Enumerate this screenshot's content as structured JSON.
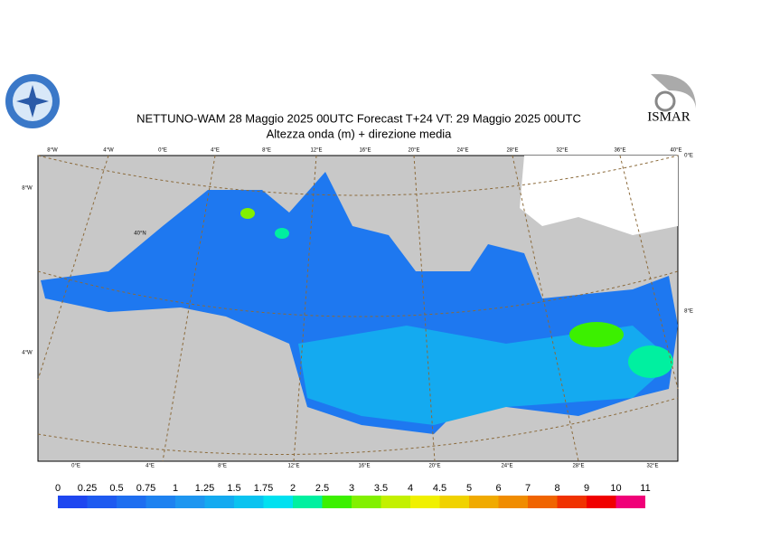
{
  "header": {
    "title": "NETTUNO-WAM  28   Maggio  2025 00UTC Forecast T+24 VT: 29   Maggio  2025 00UTC",
    "subtitle": "Altezza onda (m) + direzione media"
  },
  "logo_right": "ISMAR",
  "map": {
    "top_labels": [
      "8°W",
      "4°W",
      "0°E",
      "4°E",
      "8°E",
      "12°E",
      "16°E",
      "20°E",
      "24°E",
      "28°E",
      "32°E",
      "36°E",
      "40°E"
    ],
    "bottom_labels": [
      "0°E",
      "4°E",
      "8°E",
      "12°E",
      "16°E",
      "20°E",
      "24°E",
      "28°E",
      "32°E"
    ],
    "left_labels": [
      "8°W",
      "4°W"
    ],
    "right_labels": [
      "0°E",
      "8°E"
    ],
    "inner_label": "40°N"
  },
  "colorbar": {
    "labels": [
      0,
      0.25,
      0.5,
      0.75,
      1,
      1.25,
      1.5,
      1.75,
      2,
      2.5,
      3,
      3.5,
      4,
      4.5,
      5,
      6,
      7,
      8,
      9,
      10,
      11
    ],
    "colors": [
      "#1e46f0",
      "#1e5af0",
      "#1e6ef0",
      "#1e82f0",
      "#1e96f0",
      "#14aaf0",
      "#0ac3f0",
      "#00e1f0",
      "#00f0a0",
      "#3cf000",
      "#82f000",
      "#c3f000",
      "#f0f000",
      "#f0d200",
      "#f0aa00",
      "#f08c00",
      "#f06400",
      "#f03200",
      "#f00000",
      "#f00078",
      "#f000c8"
    ]
  }
}
